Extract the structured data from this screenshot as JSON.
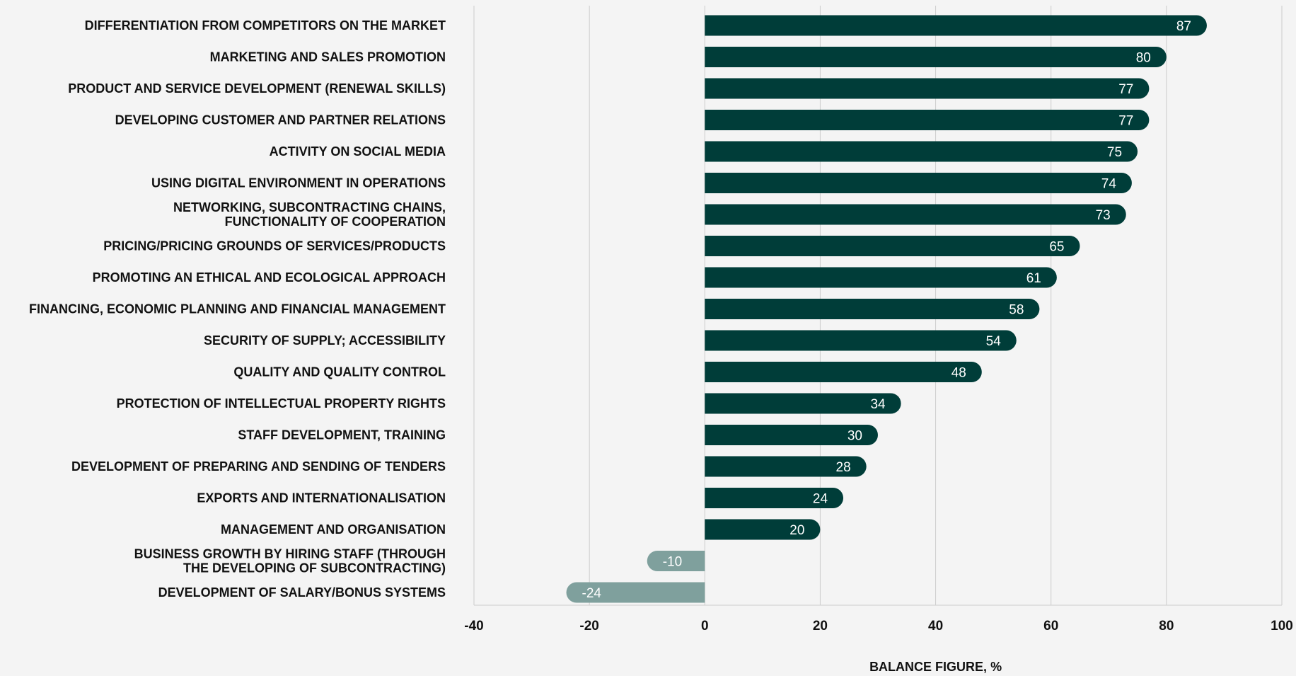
{
  "chart_data": {
    "type": "bar",
    "orientation": "horizontal",
    "categories": [
      [
        "DIFFERENTIATION FROM COMPETITORS ON THE MARKET"
      ],
      [
        "MARKETING AND SALES PROMOTION"
      ],
      [
        "PRODUCT AND SERVICE DEVELOPMENT (RENEWAL SKILLS)"
      ],
      [
        "DEVELOPING CUSTOMER AND PARTNER RELATIONS"
      ],
      [
        "ACTIVITY ON SOCIAL MEDIA"
      ],
      [
        "USING DIGITAL ENVIRONMENT IN OPERATIONS"
      ],
      [
        "NETWORKING, SUBCONTRACTING CHAINS,",
        "FUNCTIONALITY OF COOPERATION"
      ],
      [
        "PRICING/PRICING GROUNDS OF SERVICES/PRODUCTS"
      ],
      [
        "PROMOTING AN ETHICAL AND ECOLOGICAL APPROACH"
      ],
      [
        "FINANCING, ECONOMIC PLANNING AND FINANCIAL MANAGEMENT"
      ],
      [
        "SECURITY OF SUPPLY; ACCESSIBILITY"
      ],
      [
        "QUALITY AND QUALITY CONTROL"
      ],
      [
        "PROTECTION OF INTELLECTUAL PROPERTY RIGHTS"
      ],
      [
        "STAFF DEVELOPMENT, TRAINING"
      ],
      [
        "DEVELOPMENT OF PREPARING AND SENDING OF TENDERS"
      ],
      [
        "EXPORTS AND INTERNATIONALISATION"
      ],
      [
        "MANAGEMENT AND ORGANISATION"
      ],
      [
        "BUSINESS GROWTH BY HIRING STAFF (THROUGH",
        "THE DEVELOPING OF SUBCONTRACTING)"
      ],
      [
        "DEVELOPMENT OF SALARY/BONUS SYSTEMS"
      ]
    ],
    "values": [
      87,
      80,
      77,
      77,
      75,
      74,
      73,
      65,
      61,
      58,
      54,
      48,
      34,
      30,
      28,
      24,
      20,
      -10,
      -24
    ],
    "value_labels": [
      "87",
      "80",
      "77",
      "77",
      "75",
      "74",
      "73",
      "65",
      "61",
      "58",
      "54",
      "48",
      "34",
      "30",
      "28",
      "24",
      "20",
      "-10",
      "-24"
    ],
    "xlabel": "BALANCE FIGURE, %",
    "ylabel": "",
    "xlim": [
      -40,
      100
    ],
    "xticks": [
      -40,
      -20,
      0,
      20,
      40,
      60,
      80,
      100
    ],
    "xtick_labels": [
      "-40",
      "-20",
      "0",
      "20",
      "40",
      "60",
      "80",
      "100"
    ],
    "grid": "vertical",
    "legend": "none",
    "colors": {
      "positive_bar": "#003d39",
      "negative_bar": "#7fa09d",
      "positive_label": "#ffffff",
      "negative_label": "#ffffff",
      "gridline": "#cccccc",
      "background": "#f4f4f4"
    }
  }
}
